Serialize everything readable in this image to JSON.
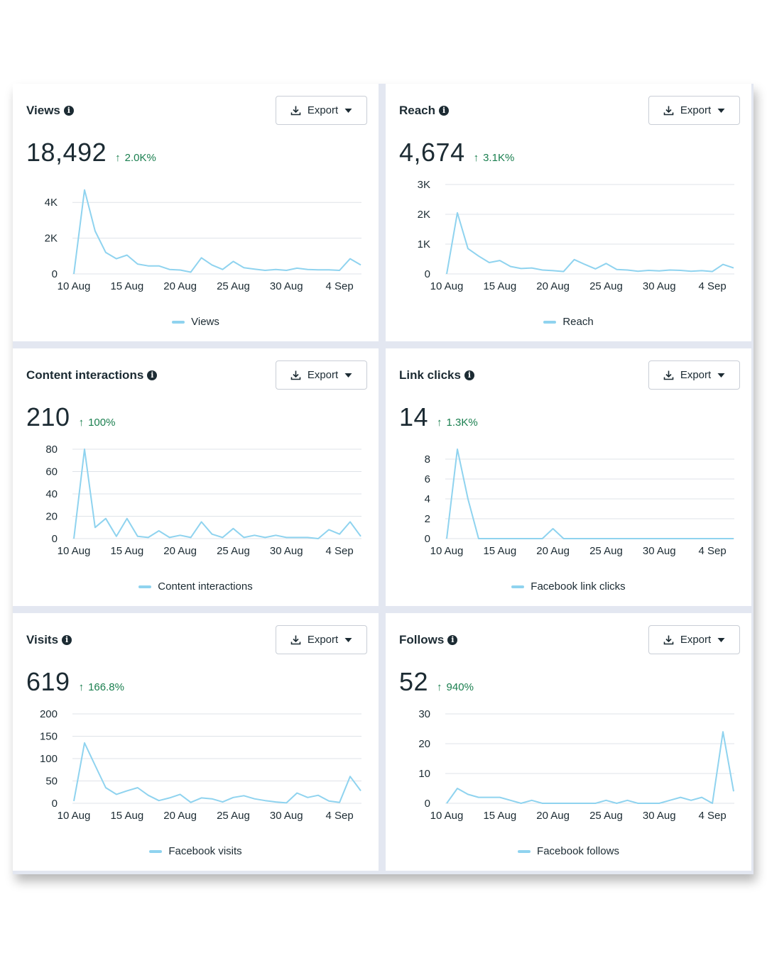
{
  "export_label": "Export",
  "colors": {
    "line": "#8fd3ef",
    "gridline": "#dfe3e8",
    "positive": "#1a7f4f"
  },
  "cards": [
    {
      "title": "Views",
      "value": "18,492",
      "change": "2.0K%",
      "chart_data": {
        "type": "line",
        "ylim": [
          0,
          5000
        ],
        "yticks": [
          0,
          2000,
          4000
        ],
        "ytick_labels": [
          "0",
          "2K",
          "4K"
        ],
        "xtick_labels": [
          "10 Aug",
          "15 Aug",
          "20 Aug",
          "25 Aug",
          "30 Aug",
          "4 Sep"
        ],
        "series": [
          {
            "name": "Views",
            "values": [
              0,
              4700,
              2400,
              1200,
              850,
              1050,
              550,
              450,
              450,
              250,
              220,
              100,
              900,
              500,
              250,
              700,
              350,
              270,
              200,
              250,
              200,
              320,
              250,
              230,
              230,
              200,
              850,
              500
            ]
          }
        ]
      }
    },
    {
      "title": "Reach",
      "value": "4,674",
      "change": "3.1K%",
      "chart_data": {
        "type": "line",
        "ylim": [
          0,
          3000
        ],
        "yticks": [
          0,
          1000,
          2000,
          3000
        ],
        "ytick_labels": [
          "0",
          "1K",
          "2K",
          "3K"
        ],
        "xtick_labels": [
          "10 Aug",
          "15 Aug",
          "20 Aug",
          "25 Aug",
          "30 Aug",
          "4 Sep"
        ],
        "series": [
          {
            "name": "Reach",
            "values": [
              0,
              2050,
              850,
              600,
              380,
              450,
              250,
              180,
              200,
              130,
              110,
              80,
              480,
              320,
              170,
              350,
              150,
              130,
              90,
              120,
              100,
              130,
              120,
              90,
              110,
              80,
              320,
              200
            ]
          }
        ]
      }
    },
    {
      "title": "Content interactions",
      "value": "210",
      "change": "100%",
      "chart_data": {
        "type": "line",
        "ylim": [
          0,
          80
        ],
        "yticks": [
          0,
          20,
          40,
          60,
          80
        ],
        "ytick_labels": [
          "0",
          "20",
          "40",
          "60",
          "80"
        ],
        "xtick_labels": [
          "10 Aug",
          "15 Aug",
          "20 Aug",
          "25 Aug",
          "30 Aug",
          "4 Sep"
        ],
        "series": [
          {
            "name": "Content interactions",
            "values": [
              0,
              80,
              10,
              18,
              2,
              18,
              2,
              1,
              7,
              1,
              3,
              1,
              15,
              4,
              1,
              9,
              1,
              3,
              1,
              3,
              1,
              1,
              1,
              0,
              8,
              4,
              15,
              2
            ]
          }
        ]
      }
    },
    {
      "title": "Link clicks",
      "value": "14",
      "change": "1.3K%",
      "chart_data": {
        "type": "line",
        "ylim": [
          0,
          9
        ],
        "yticks": [
          0,
          2,
          4,
          6,
          8
        ],
        "ytick_labels": [
          "0",
          "2",
          "4",
          "6",
          "8"
        ],
        "xtick_labels": [
          "10 Aug",
          "15 Aug",
          "20 Aug",
          "25 Aug",
          "30 Aug",
          "4 Sep"
        ],
        "series": [
          {
            "name": "Facebook link clicks",
            "values": [
              0,
              9,
              4,
              0,
              0,
              0,
              0,
              0,
              0,
              0,
              1,
              0,
              0,
              0,
              0,
              0,
              0,
              0,
              0,
              0,
              0,
              0,
              0,
              0,
              0,
              0,
              0,
              0
            ]
          }
        ]
      }
    },
    {
      "title": "Visits",
      "value": "619",
      "change": "166.8%",
      "chart_data": {
        "type": "line",
        "ylim": [
          0,
          200
        ],
        "yticks": [
          0,
          50,
          100,
          150,
          200
        ],
        "ytick_labels": [
          "0",
          "50",
          "100",
          "150",
          "200"
        ],
        "xtick_labels": [
          "10 Aug",
          "15 Aug",
          "20 Aug",
          "25 Aug",
          "30 Aug",
          "4 Sep"
        ],
        "series": [
          {
            "name": "Facebook visits",
            "values": [
              5,
              135,
              85,
              35,
              20,
              28,
              35,
              18,
              6,
              12,
              20,
              2,
              12,
              10,
              3,
              13,
              17,
              10,
              6,
              3,
              1,
              23,
              13,
              18,
              5,
              2,
              60,
              28
            ]
          }
        ]
      }
    },
    {
      "title": "Follows",
      "value": "52",
      "change": "940%",
      "chart_data": {
        "type": "line",
        "ylim": [
          0,
          30
        ],
        "yticks": [
          0,
          10,
          20,
          30
        ],
        "ytick_labels": [
          "0",
          "10",
          "20",
          "30"
        ],
        "xtick_labels": [
          "10 Aug",
          "15 Aug",
          "20 Aug",
          "25 Aug",
          "30 Aug",
          "4 Sep"
        ],
        "series": [
          {
            "name": "Facebook follows",
            "values": [
              0,
              5,
              3,
              2,
              2,
              2,
              1,
              0,
              1,
              0,
              0,
              0,
              0,
              0,
              0,
              1,
              0,
              1,
              0,
              0,
              0,
              1,
              2,
              1,
              2,
              0,
              24,
              4
            ]
          }
        ]
      }
    }
  ]
}
